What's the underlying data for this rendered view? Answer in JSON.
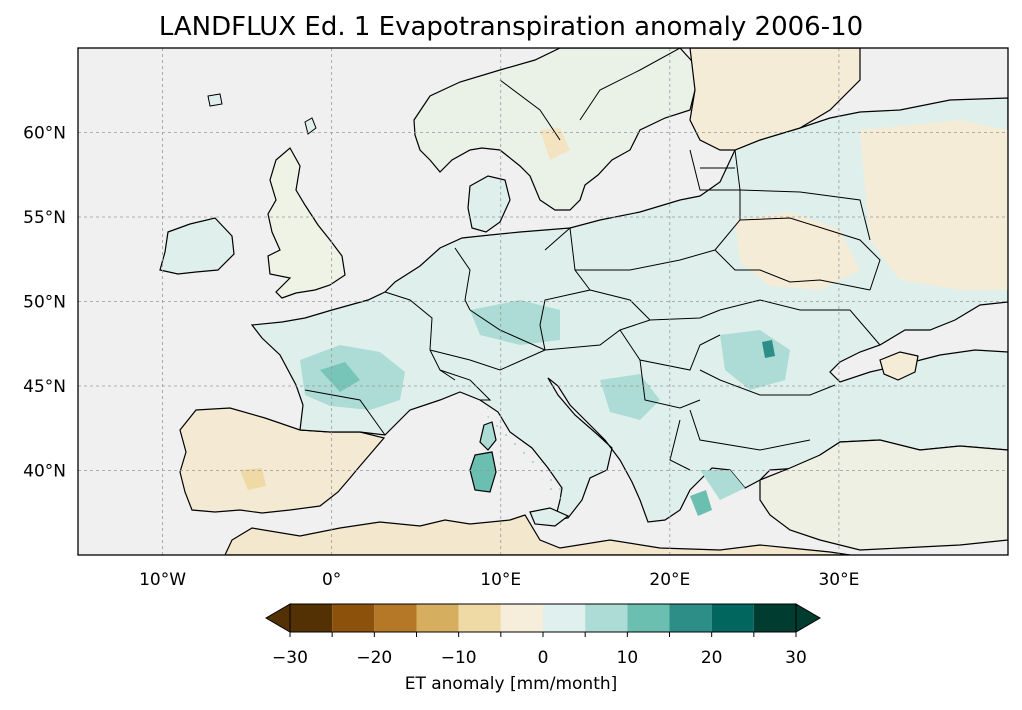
{
  "figure": {
    "title": "LANDFLUX Ed. 1 Evapotranspiration anomaly 2006-10"
  },
  "map": {
    "region": "Europe",
    "projection": "PlateCarree",
    "extent": {
      "lon": [
        -15,
        40
      ],
      "lat": [
        35,
        65
      ]
    },
    "gridlines": true,
    "ocean_color": "#f0f0f0",
    "x_ticks": [
      {
        "value": -10,
        "label": "10°W"
      },
      {
        "value": 0,
        "label": "0°"
      },
      {
        "value": 10,
        "label": "10°E"
      },
      {
        "value": 20,
        "label": "20°E"
      },
      {
        "value": 30,
        "label": "30°E"
      }
    ],
    "y_ticks": [
      {
        "value": 60,
        "label": "60°N"
      },
      {
        "value": 55,
        "label": "55°N"
      },
      {
        "value": 50,
        "label": "50°N"
      },
      {
        "value": 45,
        "label": "45°N"
      },
      {
        "value": 40,
        "label": "40°N"
      }
    ]
  },
  "colorbar": {
    "label": "ET anomaly [mm/month]",
    "colormap": "BrBG",
    "extend": "both",
    "range": [
      -30,
      30
    ],
    "boundaries": [
      -30,
      -25,
      -20,
      -15,
      -10,
      -5,
      0,
      5,
      10,
      15,
      20,
      25,
      30
    ],
    "colors": [
      "#543005",
      "#8c510a",
      "#b57827",
      "#d6ae5f",
      "#efd9a5",
      "#f6eddb",
      "#dff0ee",
      "#acdcd5",
      "#6abfb1",
      "#2c8e86",
      "#01665e",
      "#003c30"
    ],
    "under_color": "#543005",
    "over_color": "#003c30",
    "tick_labels": [
      {
        "value": -30,
        "label": "−30"
      },
      {
        "value": -20,
        "label": "−20"
      },
      {
        "value": -10,
        "label": "−10"
      },
      {
        "value": 0,
        "label": "0"
      },
      {
        "value": 10,
        "label": "10"
      },
      {
        "value": 20,
        "label": "20"
      },
      {
        "value": 30,
        "label": "30"
      }
    ]
  }
}
